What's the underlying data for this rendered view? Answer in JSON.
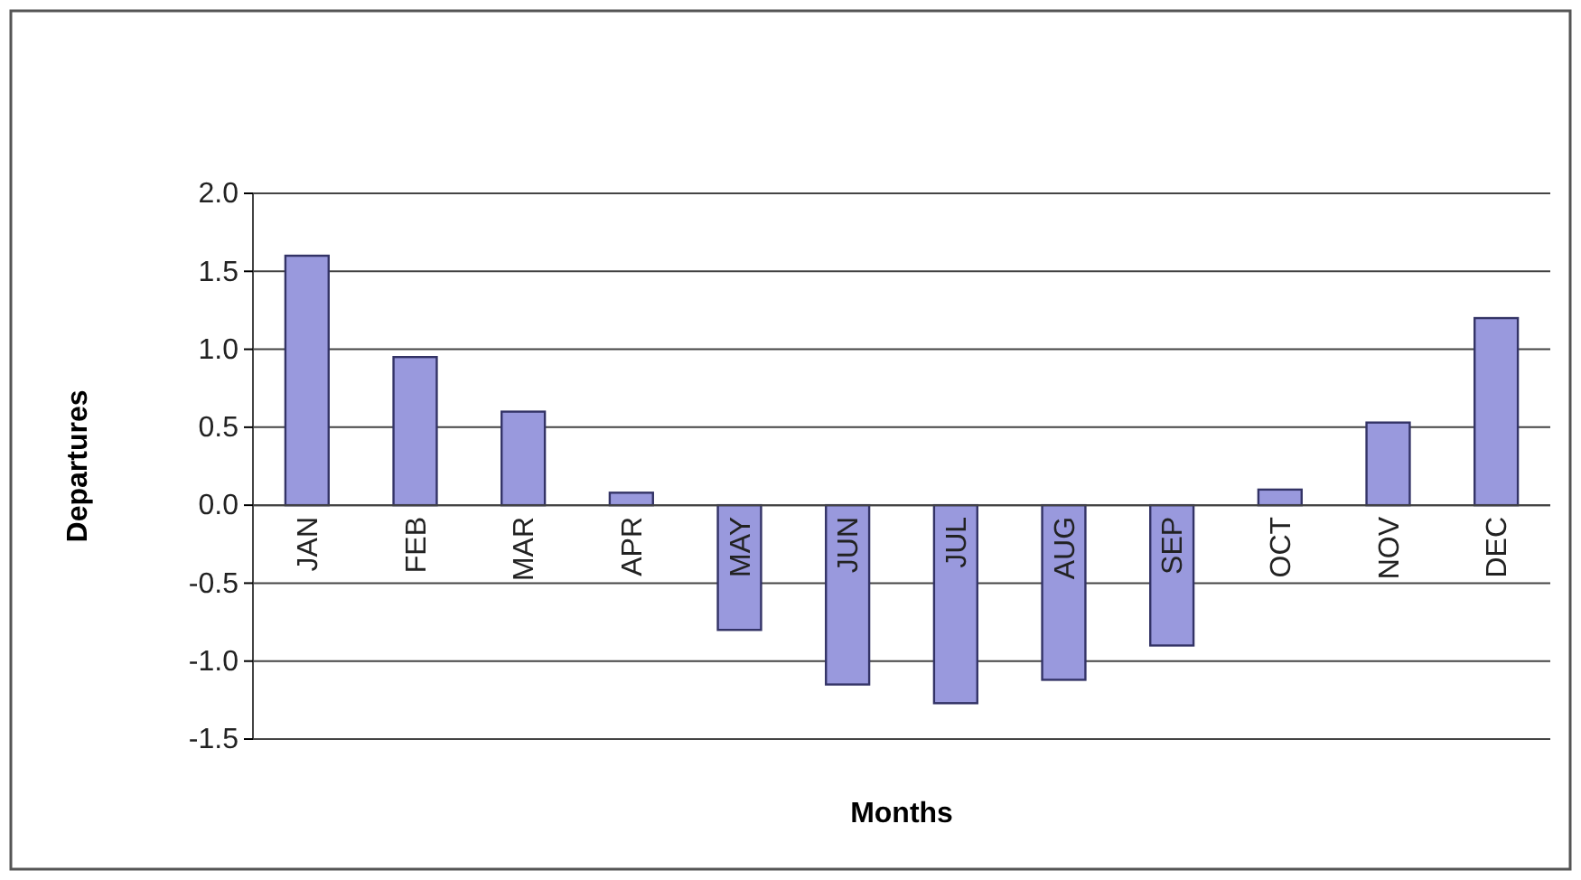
{
  "chart_data": {
    "type": "bar",
    "xlabel": "Months",
    "ylabel": "Departures",
    "categories": [
      "JAN",
      "FEB",
      "MAR",
      "APR",
      "MAY",
      "JUN",
      "JUL",
      "AUG",
      "SEP",
      "OCT",
      "NOV",
      "DEC"
    ],
    "values": [
      1.6,
      0.95,
      0.6,
      0.08,
      -0.8,
      -1.15,
      -1.27,
      -1.12,
      -0.9,
      0.1,
      0.53,
      1.2
    ],
    "color": "#9999dd",
    "ylim": [
      -1.5,
      2.0
    ],
    "yticks": [
      {
        "value": -1.5,
        "label": "-1.5"
      },
      {
        "value": -1.0,
        "label": "-1.0"
      },
      {
        "value": -0.5,
        "label": "-0.5"
      },
      {
        "value": 0,
        "label": "0.0"
      },
      {
        "value": 0.5,
        "label": "0.5"
      },
      {
        "value": 1.0,
        "label": "1.0"
      },
      {
        "value": 1.5,
        "label": "1.5"
      },
      {
        "value": 2.0,
        "label": "2.0"
      }
    ],
    "grid": "y"
  }
}
